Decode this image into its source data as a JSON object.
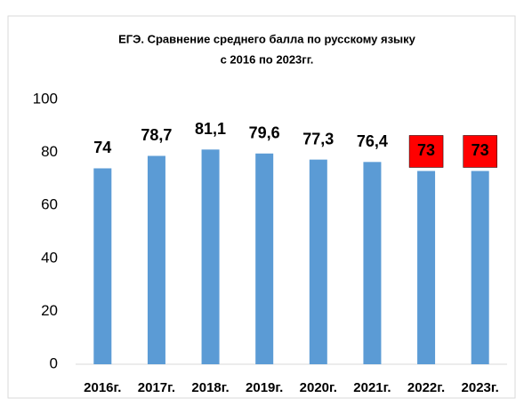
{
  "chart_data": {
    "type": "bar",
    "title": [
      "ЕГЭ. Сравнение среднего балла по русскому языку",
      "с 2016 по 2023гг."
    ],
    "categories": [
      "2016г.",
      "2017г.",
      "2018г.",
      "2019г.",
      "2020г.",
      "2021г.",
      "2022г.",
      "2023г."
    ],
    "values": [
      74,
      78.7,
      81.1,
      79.6,
      77.3,
      76.4,
      73,
      73
    ],
    "value_labels": [
      "74",
      "78,7",
      "81,1",
      "79,6",
      "77,3",
      "76,4",
      "73",
      "73"
    ],
    "value_label_backgrounds": [
      null,
      null,
      null,
      null,
      null,
      null,
      "#ff0000",
      "#ff0000"
    ],
    "color": "#5b9bd5",
    "ylim": [
      0,
      100
    ],
    "yticks": [
      0,
      20,
      40,
      60,
      80,
      100
    ],
    "grid": false
  }
}
